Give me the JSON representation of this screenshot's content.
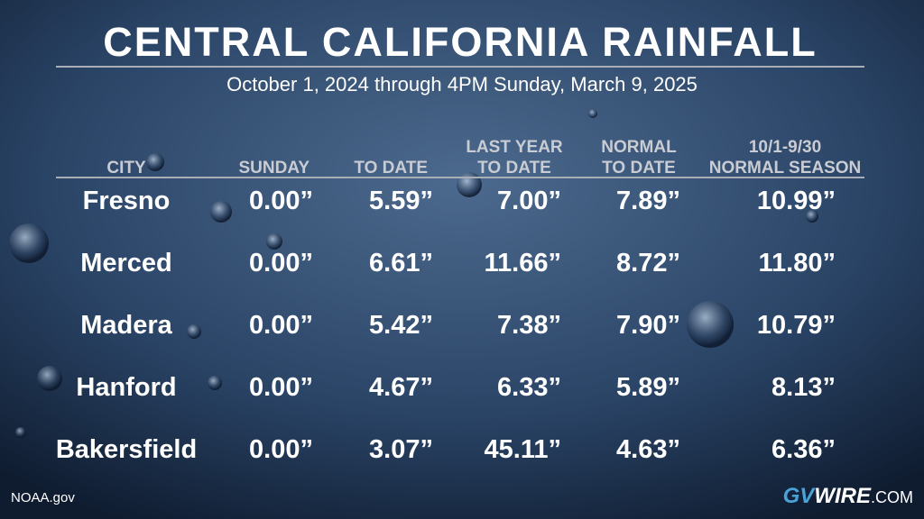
{
  "header": {
    "title": "CENTRAL CALIFORNIA RAINFALL",
    "subtitle": "October 1, 2024 through 4PM Sunday, March 9, 2025"
  },
  "table": {
    "columns": [
      [
        "CITY"
      ],
      [
        "SUNDAY"
      ],
      [
        "TO DATE"
      ],
      [
        "LAST YEAR",
        "TO DATE"
      ],
      [
        "NORMAL",
        "TO DATE"
      ],
      [
        "10/1-9/30",
        "NORMAL SEASON"
      ]
    ],
    "rows": [
      [
        "Fresno",
        "0.00”",
        "5.59”",
        "7.00”",
        "7.89”",
        "10.99”"
      ],
      [
        "Merced",
        "0.00”",
        "6.61”",
        "11.66”",
        "8.72”",
        "11.80”"
      ],
      [
        "Madera",
        "0.00”",
        "5.42”",
        "7.38”",
        "7.90”",
        "10.79”"
      ],
      [
        "Hanford",
        "0.00”",
        "4.67”",
        "6.33”",
        "5.89”",
        "8.13”"
      ],
      [
        "Bakersfield",
        "0.00”",
        "3.07”",
        "45.11”",
        "4.63”",
        "6.36”"
      ]
    ]
  },
  "footer": {
    "source": "NOAA.gov",
    "logo": [
      "GV",
      "WIRE",
      ".COM"
    ]
  }
}
